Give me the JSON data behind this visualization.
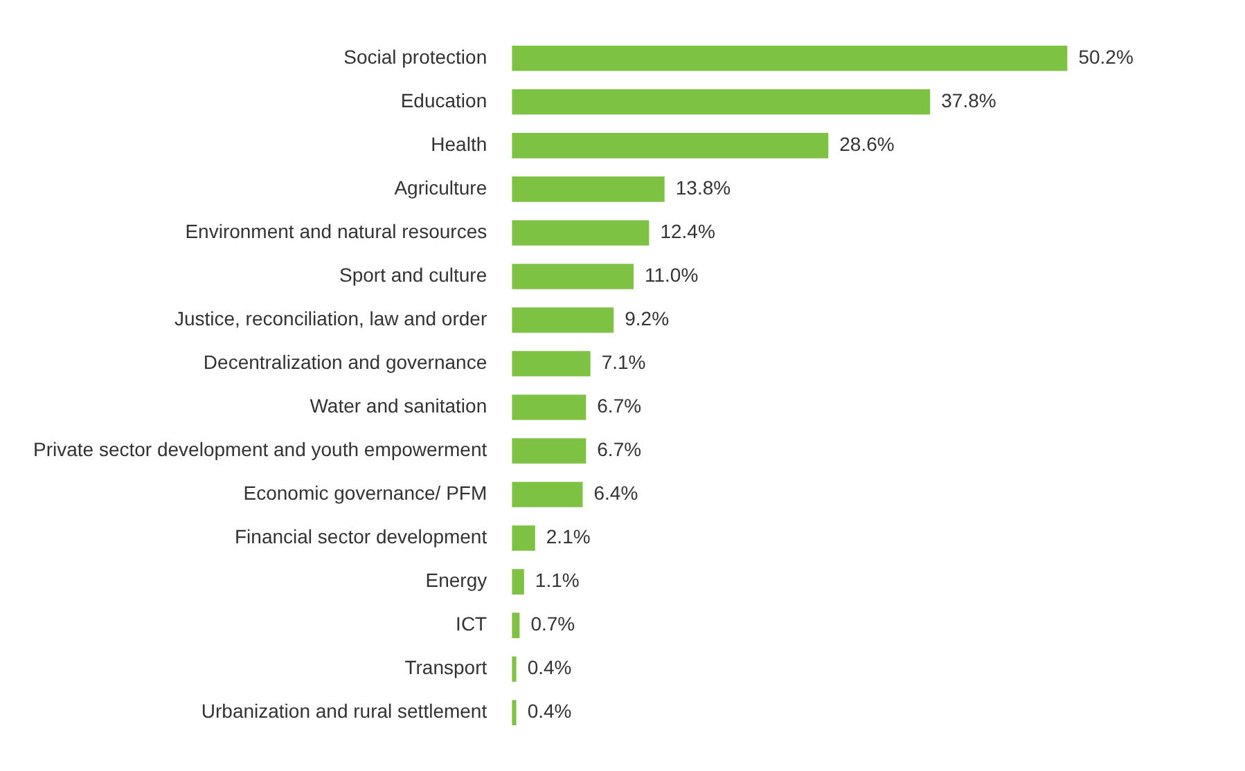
{
  "chart_data": {
    "type": "bar",
    "orientation": "horizontal",
    "tick_labels": "y",
    "categories": [
      "Social protection",
      "Education",
      "Health",
      "Agriculture",
      "Environment and natural resources",
      "Sport and culture",
      "Justice, reconciliation, law and order",
      "Decentralization and governance",
      "Water and sanitation",
      "Private sector development and youth empowerment",
      "Economic governance/ PFM",
      "Financial sector development",
      "Energy",
      "ICT",
      "Transport",
      "Urbanization and rural settlement"
    ],
    "values": [
      50.2,
      37.8,
      28.6,
      13.8,
      12.4,
      11.0,
      9.2,
      7.1,
      6.7,
      6.7,
      6.4,
      2.1,
      1.1,
      0.7,
      0.4,
      0.4
    ],
    "value_labels": [
      "50.2%",
      "37.8%",
      "28.6%",
      "13.8%",
      "12.4%",
      "11.0%",
      "9.2%",
      "7.1%",
      "6.7%",
      "6.7%",
      "6.4%",
      "2.1%",
      "1.1%",
      "0.7%",
      "0.4%",
      "0.4%"
    ],
    "color": "#7dc242"
  }
}
